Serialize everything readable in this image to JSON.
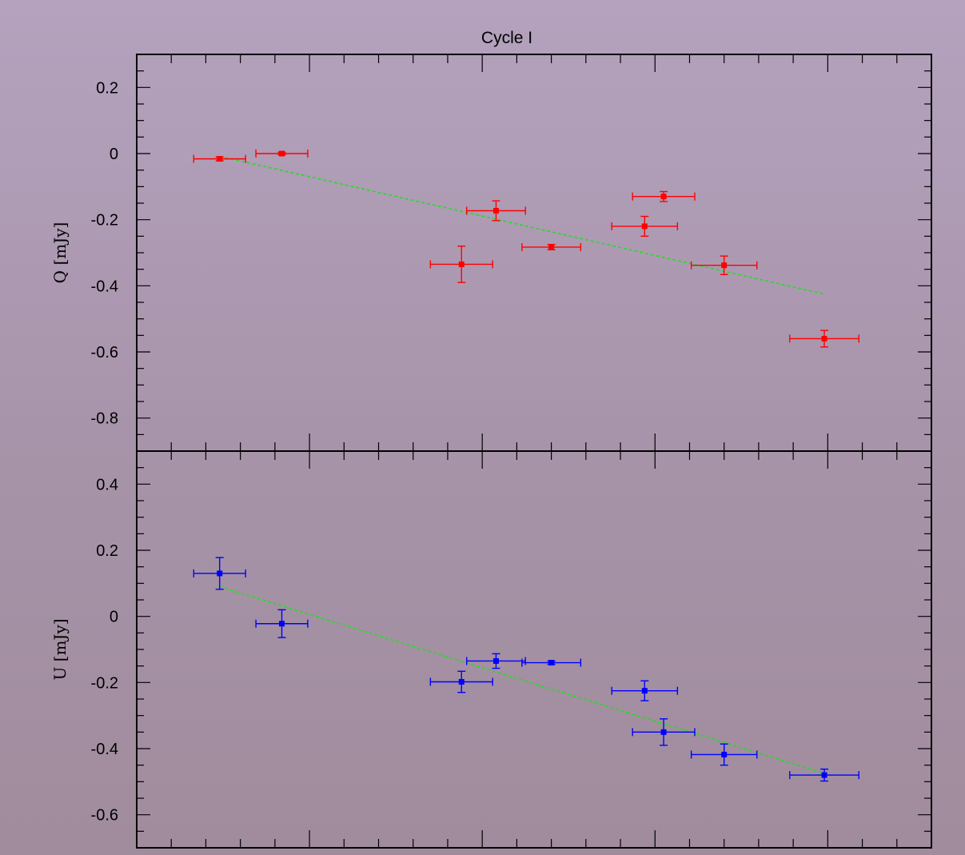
{
  "chart_data": [
    {
      "type": "scatter",
      "title": "Cycle I",
      "xlabel": "",
      "ylabel": "Q [mJy]",
      "xlim": [
        0,
        23
      ],
      "ylim": [
        -0.9,
        0.3
      ],
      "yticks": [
        0.2,
        0,
        -0.2,
        -0.4,
        -0.6,
        -0.8
      ],
      "ytick_labels": [
        "0.2",
        "0",
        "-0.2",
        "-0.4",
        "-0.6",
        "-0.8"
      ],
      "color": "#ff0000",
      "fit_color": "#22dd22",
      "points": [
        {
          "x": 2.4,
          "y": -0.016,
          "xerr": 0.75,
          "yerr": 0.006
        },
        {
          "x": 4.2,
          "y": 0.0,
          "xerr": 0.75,
          "yerr": 0.004
        },
        {
          "x": 9.4,
          "y": -0.335,
          "xerr": 0.9,
          "yerr": 0.055
        },
        {
          "x": 10.4,
          "y": -0.173,
          "xerr": 0.85,
          "yerr": 0.03
        },
        {
          "x": 12.0,
          "y": -0.283,
          "xerr": 0.85,
          "yerr": 0.008
        },
        {
          "x": 14.7,
          "y": -0.22,
          "xerr": 0.95,
          "yerr": 0.03
        },
        {
          "x": 15.25,
          "y": -0.13,
          "xerr": 0.9,
          "yerr": 0.015
        },
        {
          "x": 17.0,
          "y": -0.338,
          "xerr": 0.95,
          "yerr": 0.028
        },
        {
          "x": 19.9,
          "y": -0.56,
          "xerr": 1.0,
          "yerr": 0.025
        }
      ],
      "fit": {
        "x": [
          2.4,
          19.9
        ],
        "y": [
          -0.008,
          -0.425
        ]
      }
    },
    {
      "type": "scatter",
      "title": "",
      "xlabel": "",
      "ylabel": "U [mJy]",
      "xlim": [
        0,
        23
      ],
      "ylim": [
        -0.7,
        0.5
      ],
      "yticks": [
        0.4,
        0.2,
        0,
        -0.2,
        -0.4,
        -0.6
      ],
      "ytick_labels": [
        "0.4",
        "0.2",
        "0",
        "-0.2",
        "-0.4",
        "-0.6"
      ],
      "color": "#0000ff",
      "fit_color": "#22dd22",
      "points": [
        {
          "x": 2.4,
          "y": 0.13,
          "xerr": 0.75,
          "yerr": 0.048
        },
        {
          "x": 4.2,
          "y": -0.022,
          "xerr": 0.75,
          "yerr": 0.042
        },
        {
          "x": 9.4,
          "y": -0.198,
          "xerr": 0.9,
          "yerr": 0.032
        },
        {
          "x": 10.4,
          "y": -0.135,
          "xerr": 0.85,
          "yerr": 0.022
        },
        {
          "x": 12.0,
          "y": -0.14,
          "xerr": 0.85,
          "yerr": 0.005
        },
        {
          "x": 14.7,
          "y": -0.225,
          "xerr": 0.95,
          "yerr": 0.03
        },
        {
          "x": 15.25,
          "y": -0.35,
          "xerr": 0.9,
          "yerr": 0.04
        },
        {
          "x": 17.0,
          "y": -0.418,
          "xerr": 0.95,
          "yerr": 0.032
        },
        {
          "x": 19.9,
          "y": -0.48,
          "xerr": 1.0,
          "yerr": 0.018
        }
      ],
      "fit": {
        "x": [
          2.4,
          19.9
        ],
        "y": [
          0.09,
          -0.475
        ]
      }
    }
  ]
}
